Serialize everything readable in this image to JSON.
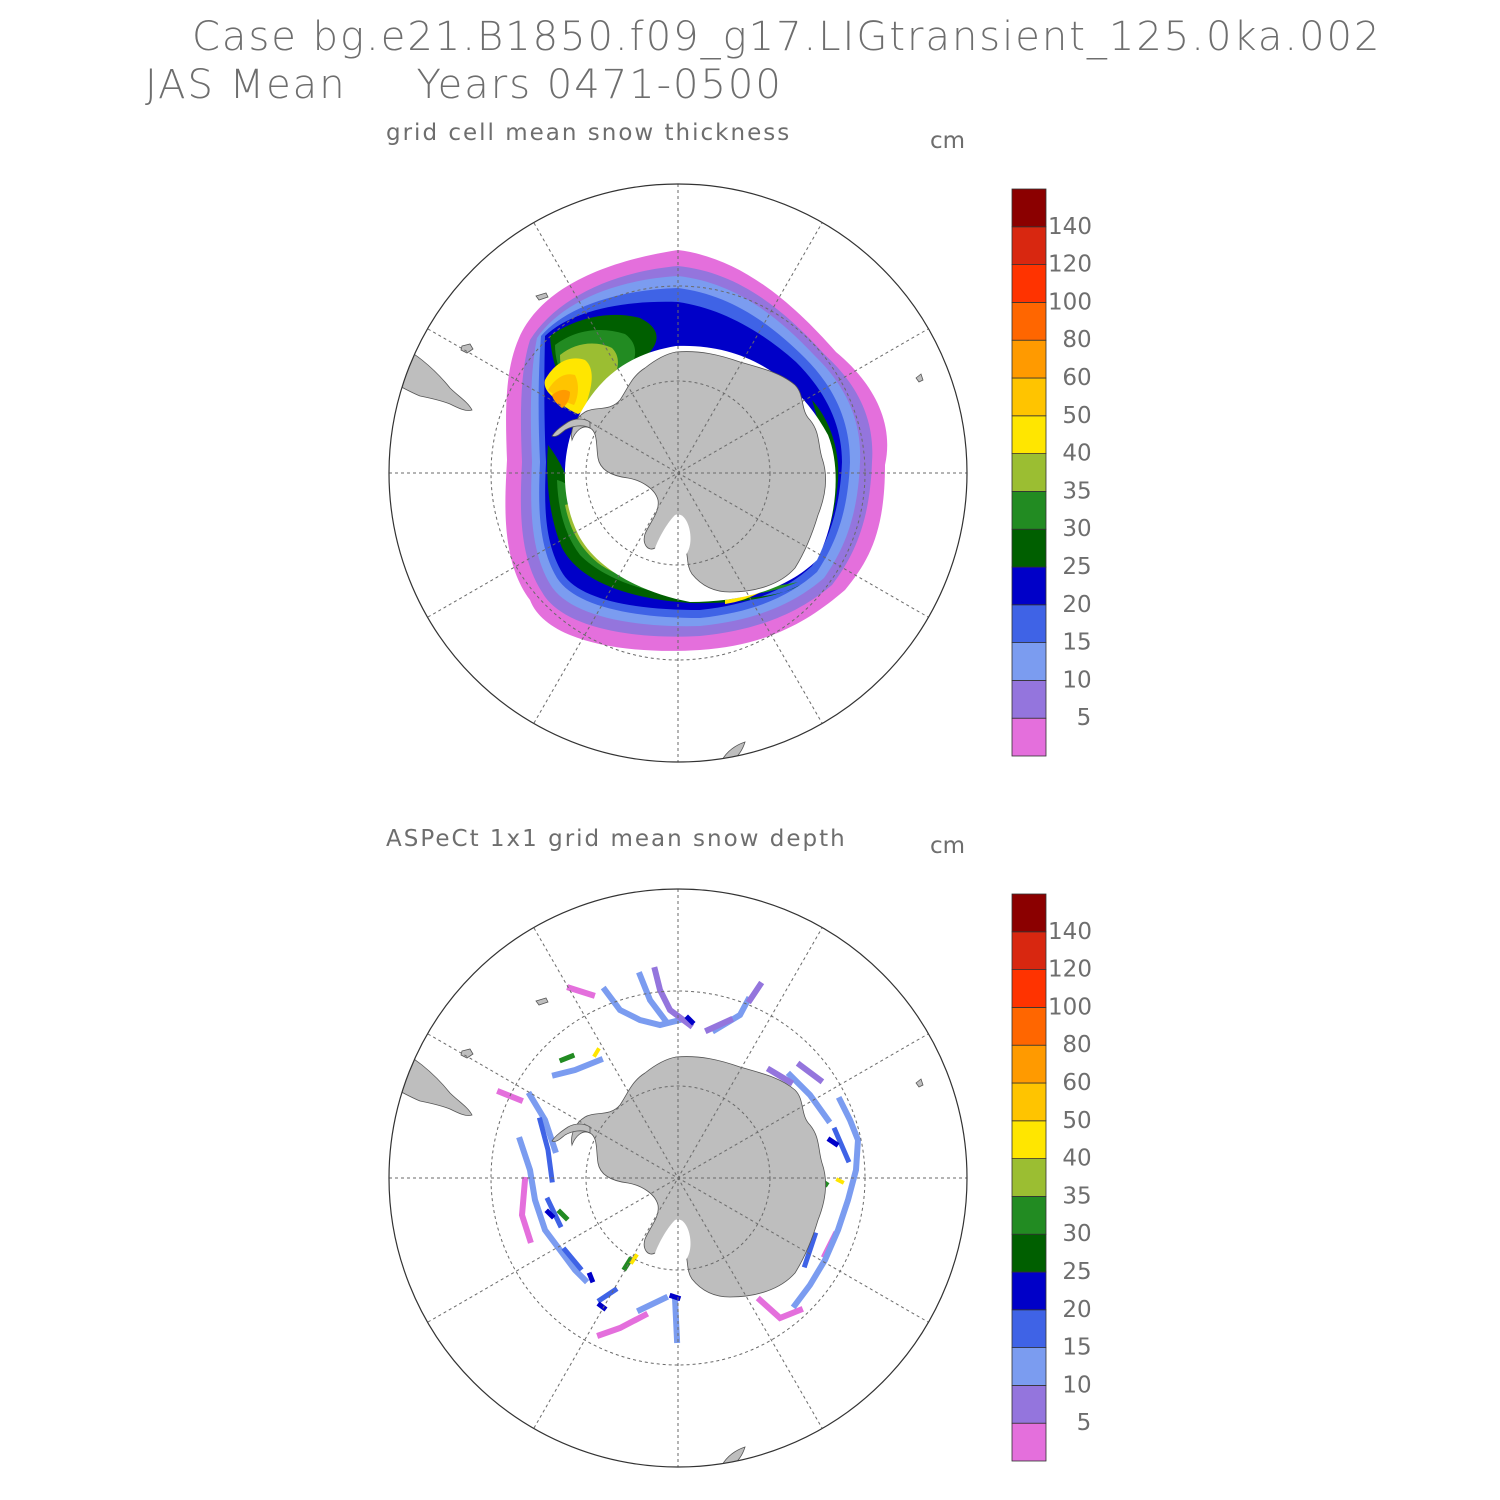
{
  "header": {
    "case_line": "Case bg.e21.B1850.f09_g17.LIGtransient_125.0ka.002",
    "period_label": "JAS Mean",
    "years_label": "Years 0471-0500"
  },
  "panels": [
    {
      "title": "grid cell mean snow thickness",
      "unit": "cm"
    },
    {
      "title": "ASPeCt 1x1 grid mean snow depth",
      "unit": "cm"
    }
  ],
  "colorbar": {
    "labels": [
      "5",
      "10",
      "15",
      "20",
      "25",
      "30",
      "35",
      "40",
      "50",
      "60",
      "80",
      "100",
      "120",
      "140"
    ],
    "colors": [
      "#e46fdc",
      "#9475dd",
      "#7b9cf0",
      "#3f63e6",
      "#0000c8",
      "#005f00",
      "#228b22",
      "#9bbe32",
      "#ffe600",
      "#ffc400",
      "#ff9a00",
      "#ff6600",
      "#ff3300",
      "#d82710",
      "#8b0000"
    ]
  },
  "map": {
    "land_color": "#bebebe",
    "projection": "south polar stereographic"
  }
}
